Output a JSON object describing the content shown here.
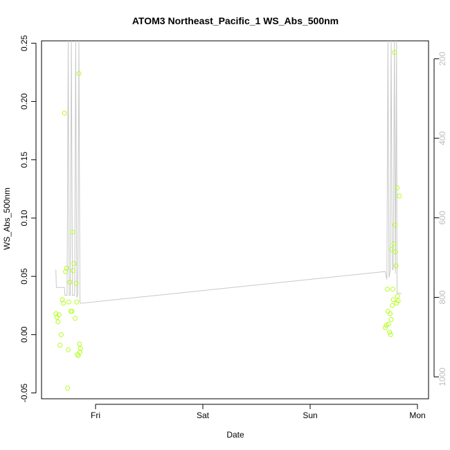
{
  "chart_data": {
    "type": "scatter",
    "title": "ATOM3 Northeast_Pacific_1 WS_Abs_500nm",
    "xlabel": "Date",
    "ylabel": "WS_Abs_500nm",
    "x_ticks": [
      "Fri",
      "Sat",
      "Sun",
      "Mon"
    ],
    "ylim": [
      -0.055,
      0.252
    ],
    "y_ticks": [
      "-0.05",
      "0.00",
      "0.05",
      "0.10",
      "0.15",
      "0.20",
      "0.25"
    ],
    "y2_ticks": [
      "200",
      "400",
      "600",
      "800",
      "1000"
    ],
    "y2lim": [
      1055,
      155
    ],
    "y2_reversed": true,
    "grid": false,
    "point_color": "#B3FF1A",
    "line_color": "#C8C8C8",
    "points": [
      {
        "day": -0.37,
        "v": 0.018
      },
      {
        "day": -0.36,
        "v": 0.015
      },
      {
        "day": -0.35,
        "v": 0.011
      },
      {
        "day": -0.34,
        "v": 0.017
      },
      {
        "day": -0.33,
        "v": -0.009
      },
      {
        "day": -0.32,
        "v": 0.0
      },
      {
        "day": -0.31,
        "v": 0.03
      },
      {
        "day": -0.3,
        "v": 0.027
      },
      {
        "day": -0.29,
        "v": 0.19
      },
      {
        "day": -0.28,
        "v": 0.054
      },
      {
        "day": -0.27,
        "v": 0.057
      },
      {
        "day": -0.26,
        "v": -0.046
      },
      {
        "day": -0.255,
        "v": -0.013
      },
      {
        "day": -0.25,
        "v": 0.028
      },
      {
        "day": -0.24,
        "v": 0.045
      },
      {
        "day": -0.23,
        "v": 0.02
      },
      {
        "day": -0.22,
        "v": 0.02
      },
      {
        "day": -0.215,
        "v": 0.088
      },
      {
        "day": -0.21,
        "v": 0.055
      },
      {
        "day": -0.2,
        "v": 0.061
      },
      {
        "day": -0.19,
        "v": 0.014
      },
      {
        "day": -0.18,
        "v": 0.044
      },
      {
        "day": -0.175,
        "v": 0.028
      },
      {
        "day": -0.17,
        "v": -0.017
      },
      {
        "day": -0.16,
        "v": -0.018
      },
      {
        "day": -0.155,
        "v": 0.224
      },
      {
        "day": -0.15,
        "v": -0.008
      },
      {
        "day": -0.145,
        "v": -0.015
      },
      {
        "day": -0.14,
        "v": -0.012
      },
      {
        "day": 2.7,
        "v": 0.006
      },
      {
        "day": 2.71,
        "v": 0.008
      },
      {
        "day": 2.72,
        "v": 0.039
      },
      {
        "day": 2.725,
        "v": 0.02
      },
      {
        "day": 2.73,
        "v": 0.009
      },
      {
        "day": 2.74,
        "v": 0.002
      },
      {
        "day": 2.745,
        "v": 0.018
      },
      {
        "day": 2.75,
        "v": 0.0
      },
      {
        "day": 2.755,
        "v": 0.013
      },
      {
        "day": 2.76,
        "v": 0.073
      },
      {
        "day": 2.765,
        "v": 0.025
      },
      {
        "day": 2.77,
        "v": 0.039
      },
      {
        "day": 2.775,
        "v": 0.03
      },
      {
        "day": 2.78,
        "v": 0.078
      },
      {
        "day": 2.785,
        "v": 0.242
      },
      {
        "day": 2.79,
        "v": 0.094
      },
      {
        "day": 2.795,
        "v": 0.071
      },
      {
        "day": 2.8,
        "v": 0.059
      },
      {
        "day": 2.805,
        "v": 0.027
      },
      {
        "day": 2.81,
        "v": 0.126
      },
      {
        "day": 2.815,
        "v": 0.033
      },
      {
        "day": 2.82,
        "v": 0.029
      },
      {
        "day": 2.83,
        "v": 0.119
      }
    ],
    "line": [
      {
        "day": -0.37,
        "alt": 730
      },
      {
        "day": -0.365,
        "alt": 775
      },
      {
        "day": -0.29,
        "alt": 775
      },
      {
        "day": -0.285,
        "alt": 795
      },
      {
        "day": -0.265,
        "alt": 795
      },
      {
        "day": -0.255,
        "alt": 155
      },
      {
        "day": -0.245,
        "alt": 795
      },
      {
        "day": -0.235,
        "alt": 795
      },
      {
        "day": -0.225,
        "alt": 155
      },
      {
        "day": -0.215,
        "alt": 795
      },
      {
        "day": -0.195,
        "alt": 795
      },
      {
        "day": -0.185,
        "alt": 155
      },
      {
        "day": -0.175,
        "alt": 800
      },
      {
        "day": -0.165,
        "alt": 795
      },
      {
        "day": -0.155,
        "alt": 155
      },
      {
        "day": -0.145,
        "alt": 810
      },
      {
        "day": -0.14,
        "alt": 815
      },
      {
        "day": 2.7,
        "alt": 735
      },
      {
        "day": 2.715,
        "alt": 755
      },
      {
        "day": 2.725,
        "alt": 155
      },
      {
        "day": 2.735,
        "alt": 750
      },
      {
        "day": 2.745,
        "alt": 735
      },
      {
        "day": 2.755,
        "alt": 155
      },
      {
        "day": 2.765,
        "alt": 730
      },
      {
        "day": 2.775,
        "alt": 730
      },
      {
        "day": 2.785,
        "alt": 155
      },
      {
        "day": 2.795,
        "alt": 740
      },
      {
        "day": 2.805,
        "alt": 155
      },
      {
        "day": 2.81,
        "alt": 790
      },
      {
        "day": 2.85,
        "alt": 790
      }
    ]
  }
}
